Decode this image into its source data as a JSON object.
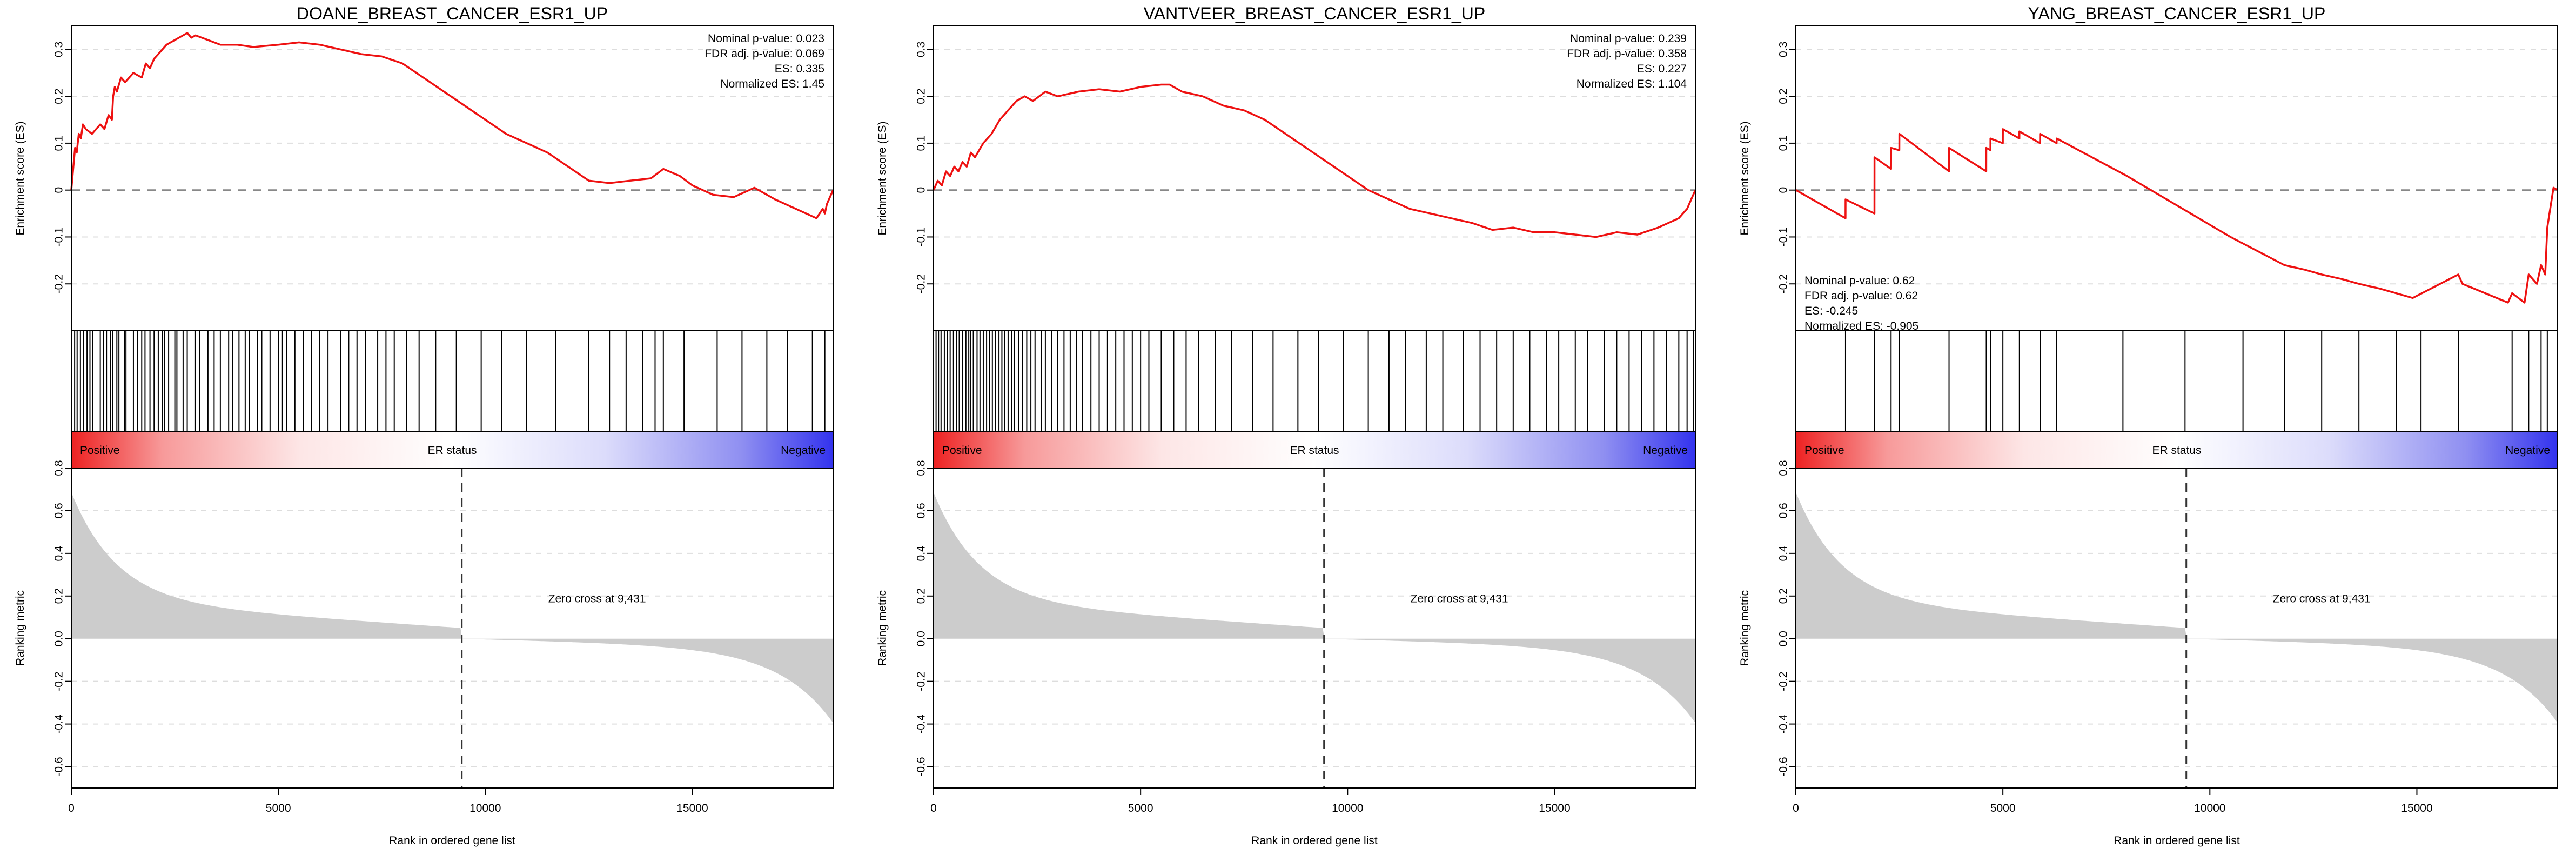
{
  "chart_data": [
    {
      "type": "line",
      "title": "DOANE_BREAST_CANCER_ESR1_UP",
      "ylabel_es": "Enrichment score (ES)",
      "ylabel_rank": "Ranking metric",
      "xlabel": "Rank in ordered gene list",
      "xlim": [
        0,
        18400
      ],
      "es_ylim": [
        -0.3,
        0.35
      ],
      "es_yticks": [
        "0.3",
        "0.2",
        "0.1",
        "0",
        "-0.1",
        "-0.2"
      ],
      "rank_ylim": [
        -0.7,
        0.8
      ],
      "rank_yticks": [
        "0.8",
        "0.6",
        "0.4",
        "0.2",
        "0.0",
        "-0.2",
        "-0.4",
        "-0.6"
      ],
      "xticks": [
        "0",
        "5000",
        "10000",
        "15000"
      ],
      "stats": [
        "Nominal p-value: 0.023",
        "FDR adj. p-value: 0.069",
        "ES: 0.335",
        "Normalized ES: 1.45"
      ],
      "stats_position": "top-right",
      "es_curve": {
        "x": [
          0,
          50,
          90,
          130,
          180,
          230,
          280,
          350,
          500,
          700,
          800,
          900,
          980,
          1010,
          1050,
          1100,
          1200,
          1300,
          1500,
          1700,
          1800,
          1900,
          2000,
          2100,
          2300,
          2500,
          2700,
          2800,
          2900,
          3000,
          3300,
          3600,
          4000,
          4400,
          5000,
          5500,
          6000,
          6500,
          7000,
          7500,
          8000,
          8500,
          9000,
          9500,
          10000,
          10500,
          11000,
          11500,
          12000,
          12500,
          13000,
          13500,
          14000,
          14300,
          14700,
          15000,
          15500,
          16000,
          16500,
          17000,
          17500,
          18000,
          18150,
          18200,
          18250,
          18300,
          18400
        ],
        "y": [
          0.0,
          0.05,
          0.09,
          0.08,
          0.12,
          0.11,
          0.14,
          0.13,
          0.12,
          0.14,
          0.13,
          0.16,
          0.15,
          0.2,
          0.22,
          0.21,
          0.24,
          0.23,
          0.25,
          0.24,
          0.27,
          0.26,
          0.28,
          0.29,
          0.31,
          0.32,
          0.33,
          0.335,
          0.325,
          0.33,
          0.32,
          0.31,
          0.31,
          0.305,
          0.31,
          0.315,
          0.31,
          0.3,
          0.29,
          0.285,
          0.27,
          0.24,
          0.21,
          0.18,
          0.15,
          0.12,
          0.1,
          0.08,
          0.05,
          0.02,
          0.015,
          0.02,
          0.025,
          0.045,
          0.03,
          0.01,
          -0.01,
          -0.015,
          0.005,
          -0.02,
          -0.04,
          -0.06,
          -0.04,
          -0.05,
          -0.03,
          -0.02,
          0.0
        ]
      },
      "hits": [
        80,
        140,
        220,
        300,
        380,
        450,
        520,
        700,
        780,
        850,
        950,
        1000,
        1100,
        1150,
        1280,
        1320,
        1500,
        1600,
        1700,
        1780,
        1900,
        2000,
        2100,
        2200,
        2250,
        2350,
        2500,
        2550,
        2700,
        2800,
        3000,
        3100,
        3300,
        3450,
        3600,
        3800,
        3900,
        4050,
        4200,
        4300,
        4500,
        4600,
        4800,
        5000,
        5100,
        5200,
        5400,
        5600,
        5800,
        6000,
        6200,
        6500,
        6700,
        6900,
        7100,
        7400,
        7600,
        7800,
        8100,
        8400,
        8800,
        9300,
        9900,
        10400,
        11000,
        11700,
        12500,
        13000,
        13400,
        13800,
        14100,
        14300,
        14800,
        15600,
        16200,
        16800,
        17300,
        17900,
        18200
      ],
      "heatmap_labels": {
        "left": "Positive",
        "center": "ER status",
        "right": "Negative"
      },
      "zero_cross": 9431,
      "zero_cross_label": "Zero cross at 9,431"
    },
    {
      "type": "line",
      "title": "VANTVEER_BREAST_CANCER_ESR1_UP",
      "ylabel_es": "Enrichment score (ES)",
      "ylabel_rank": "Ranking metric",
      "xlabel": "Rank in ordered gene list",
      "xlim": [
        0,
        18400
      ],
      "es_ylim": [
        -0.3,
        0.35
      ],
      "es_yticks": [
        "0.3",
        "0.2",
        "0.1",
        "0",
        "-0.1",
        "-0.2"
      ],
      "rank_ylim": [
        -0.7,
        0.8
      ],
      "rank_yticks": [
        "0.8",
        "0.6",
        "0.4",
        "0.2",
        "0.0",
        "-0.2",
        "-0.4",
        "-0.6"
      ],
      "xticks": [
        "0",
        "5000",
        "10000",
        "15000"
      ],
      "stats": [
        "Nominal p-value: 0.239",
        "FDR adj. p-value: 0.358",
        "ES: 0.227",
        "Normalized ES: 1.104"
      ],
      "stats_position": "top-right",
      "es_curve": {
        "x": [
          0,
          100,
          200,
          300,
          400,
          500,
          600,
          700,
          800,
          900,
          1000,
          1200,
          1400,
          1600,
          1800,
          2000,
          2200,
          2400,
          2700,
          3000,
          3500,
          4000,
          4500,
          5000,
          5500,
          5700,
          6000,
          6500,
          7000,
          7500,
          8000,
          8500,
          9000,
          9500,
          10000,
          10500,
          11000,
          11500,
          12000,
          12500,
          13000,
          13500,
          14000,
          14500,
          15000,
          15500,
          16000,
          16500,
          17000,
          17500,
          18000,
          18200,
          18300,
          18400
        ],
        "y": [
          0.0,
          0.02,
          0.01,
          0.04,
          0.03,
          0.05,
          0.04,
          0.06,
          0.05,
          0.08,
          0.07,
          0.1,
          0.12,
          0.15,
          0.17,
          0.19,
          0.2,
          0.19,
          0.21,
          0.2,
          0.21,
          0.215,
          0.21,
          0.22,
          0.225,
          0.225,
          0.21,
          0.2,
          0.18,
          0.17,
          0.15,
          0.12,
          0.09,
          0.06,
          0.03,
          0.0,
          -0.02,
          -0.04,
          -0.05,
          -0.06,
          -0.07,
          -0.085,
          -0.08,
          -0.09,
          -0.09,
          -0.095,
          -0.1,
          -0.09,
          -0.095,
          -0.08,
          -0.06,
          -0.04,
          -0.02,
          0.0
        ]
      },
      "hits": [
        60,
        120,
        180,
        260,
        330,
        400,
        480,
        550,
        620,
        700,
        780,
        850,
        900,
        960,
        1050,
        1120,
        1200,
        1280,
        1350,
        1420,
        1500,
        1580,
        1650,
        1720,
        1800,
        1880,
        1950,
        2050,
        2150,
        2250,
        2350,
        2450,
        2600,
        2700,
        2850,
        3000,
        3150,
        3300,
        3450,
        3600,
        3800,
        4000,
        4200,
        4400,
        4600,
        4800,
        5000,
        5200,
        5500,
        5800,
        6100,
        6400,
        6800,
        7200,
        7700,
        8200,
        8800,
        9300,
        9900,
        10500,
        11000,
        11400,
        11900,
        12300,
        12800,
        13200,
        13600,
        14000,
        14400,
        14800,
        15100,
        15500,
        15800,
        16200,
        16500,
        16800,
        17100,
        17400,
        17700,
        18000,
        18200,
        18350
      ],
      "heatmap_labels": {
        "left": "Positive",
        "center": "ER status",
        "right": "Negative"
      },
      "zero_cross": 9431,
      "zero_cross_label": "Zero cross at 9,431"
    },
    {
      "type": "line",
      "title": "YANG_BREAST_CANCER_ESR1_UP",
      "ylabel_es": "Enrichment score (ES)",
      "ylabel_rank": "Ranking metric",
      "xlabel": "Rank in ordered gene list",
      "xlim": [
        0,
        18400
      ],
      "es_ylim": [
        -0.3,
        0.35
      ],
      "es_yticks": [
        "0.3",
        "0.2",
        "0.1",
        "0",
        "-0.1",
        "-0.2"
      ],
      "rank_ylim": [
        -0.7,
        0.8
      ],
      "rank_yticks": [
        "0.8",
        "0.6",
        "0.4",
        "0.2",
        "0.0",
        "-0.2",
        "-0.4",
        "-0.6"
      ],
      "xticks": [
        "0",
        "5000",
        "10000",
        "15000"
      ],
      "stats": [
        "Nominal p-value: 0.62",
        "FDR adj. p-value: 0.62",
        "ES: -0.245",
        "Normalized ES: -0.905"
      ],
      "stats_position": "bottom-left",
      "es_curve": {
        "x": [
          0,
          1199,
          1200,
          1899,
          1900,
          2299,
          2300,
          2499,
          2500,
          3699,
          3700,
          4599,
          4600,
          4699,
          4700,
          4999,
          5000,
          5399,
          5400,
          5899,
          5900,
          6299,
          6300,
          8000,
          10500,
          11800,
          12300,
          12700,
          13200,
          13600,
          14100,
          14500,
          14900,
          16000,
          16100,
          17200,
          17300,
          17600,
          17700,
          17900,
          18000,
          18100,
          18150,
          18300,
          18400
        ],
        "y": [
          0.0,
          -0.06,
          -0.02,
          -0.05,
          0.07,
          0.045,
          0.09,
          0.085,
          0.12,
          0.04,
          0.09,
          0.04,
          0.09,
          0.085,
          0.11,
          0.1,
          0.13,
          0.11,
          0.125,
          0.1,
          0.12,
          0.1,
          0.11,
          0.03,
          -0.1,
          -0.16,
          -0.17,
          -0.18,
          -0.19,
          -0.2,
          -0.21,
          -0.22,
          -0.23,
          -0.18,
          -0.2,
          -0.24,
          -0.22,
          -0.24,
          -0.18,
          -0.2,
          -0.16,
          -0.18,
          -0.08,
          0.005,
          0.0
        ]
      },
      "hits": [
        1200,
        1900,
        2300,
        2500,
        3700,
        4600,
        4700,
        5000,
        5400,
        5900,
        6300,
        7900,
        9400,
        10800,
        11800,
        12700,
        13600,
        14500,
        15100,
        16000,
        17300,
        17700,
        18000,
        18150
      ],
      "heatmap_labels": {
        "left": "Positive",
        "center": "ER status",
        "right": "Negative"
      },
      "zero_cross": 9431,
      "zero_cross_label": "Zero cross at 9,431"
    }
  ],
  "colors": {
    "curve": "#ee1111",
    "fill": "#cccccc",
    "grid": "#dddddd",
    "zero": "#888888",
    "positive": "#ee2222",
    "negative": "#3333ee"
  }
}
